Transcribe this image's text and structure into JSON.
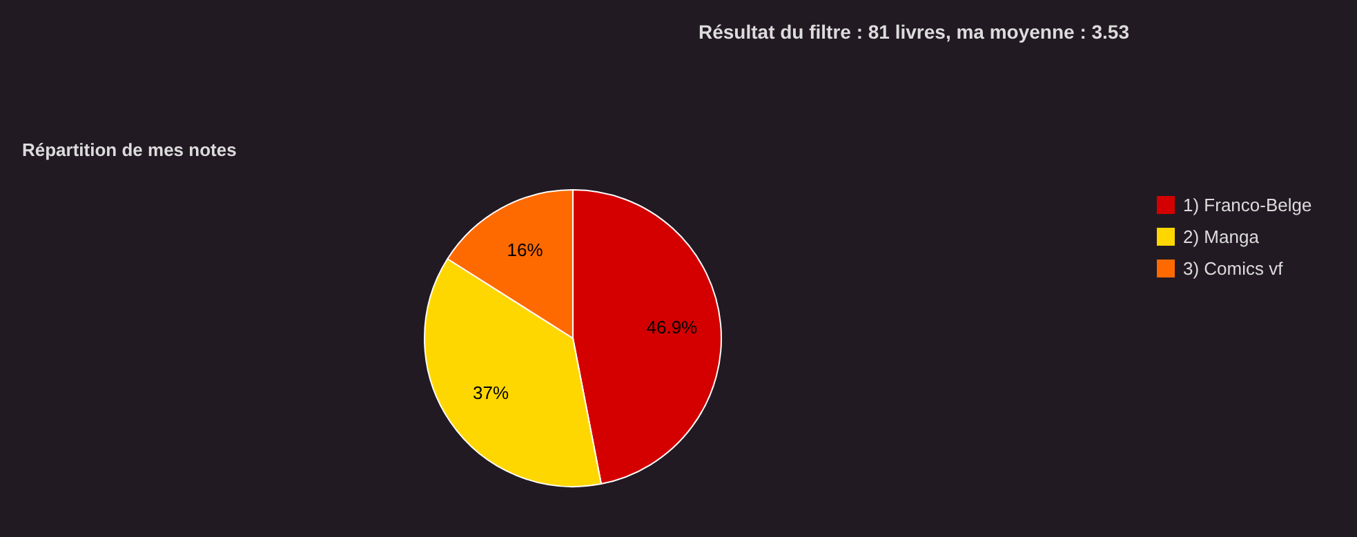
{
  "chart_data": {
    "type": "pie",
    "title": "Résultat du filtre : 81 livres, ma moyenne : 3.53",
    "subtitle": "Répartition de mes notes",
    "categories": [
      "1) Franco-Belge",
      "2) Manga",
      "3) Comics vf"
    ],
    "values": [
      46.9,
      37,
      16
    ],
    "colors": [
      "#d40000",
      "#ffd700",
      "#ff6a00"
    ],
    "value_labels": [
      "46.9%",
      "37%",
      "16%"
    ],
    "legend": "top right"
  }
}
